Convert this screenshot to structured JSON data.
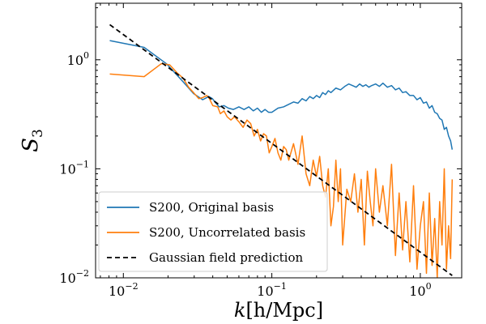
{
  "chart_data": {
    "type": "line",
    "x_scale": "log",
    "y_scale": "log",
    "xlabel_var": "k",
    "xlabel_units": "[h/Mpc]",
    "ylabel_var": "S",
    "ylabel_sub": "3",
    "xlim": [
      0.0065,
      1.9
    ],
    "ylim": [
      0.01,
      3.3
    ],
    "x_ticks": [
      {
        "value": 0.01,
        "base": "10",
        "exp": "−2"
      },
      {
        "value": 0.1,
        "base": "10",
        "exp": "−1"
      },
      {
        "value": 1,
        "base": "10",
        "exp": "0"
      }
    ],
    "y_ticks": [
      {
        "value": 0.01,
        "base": "10",
        "exp": "−2"
      },
      {
        "value": 0.1,
        "base": "10",
        "exp": "−1"
      },
      {
        "value": 1,
        "base": "10",
        "exp": "0"
      }
    ],
    "legend_position": "lower-left",
    "series": [
      {
        "name": "S200, Original basis",
        "color": "#1f77b4",
        "style": "solid",
        "x": [
          0.0081,
          0.0138,
          0.0195,
          0.0252,
          0.0297,
          0.0342,
          0.0376,
          0.0398,
          0.042,
          0.0442,
          0.0476,
          0.051,
          0.055,
          0.06,
          0.065,
          0.07,
          0.075,
          0.08,
          0.085,
          0.09,
          0.095,
          0.1,
          0.11,
          0.12,
          0.13,
          0.14,
          0.15,
          0.16,
          0.17,
          0.18,
          0.19,
          0.2,
          0.21,
          0.22,
          0.23,
          0.24,
          0.25,
          0.27,
          0.29,
          0.31,
          0.33,
          0.35,
          0.37,
          0.39,
          0.41,
          0.43,
          0.45,
          0.47,
          0.5,
          0.53,
          0.56,
          0.6,
          0.64,
          0.68,
          0.72,
          0.76,
          0.8,
          0.85,
          0.9,
          0.95,
          1.0,
          1.05,
          1.1,
          1.15,
          1.2,
          1.25,
          1.3,
          1.35,
          1.4,
          1.45,
          1.5,
          1.55,
          1.6,
          1.64
        ],
        "y": [
          1.5,
          1.3,
          0.92,
          0.63,
          0.49,
          0.43,
          0.46,
          0.44,
          0.4,
          0.37,
          0.38,
          0.36,
          0.35,
          0.37,
          0.35,
          0.37,
          0.34,
          0.36,
          0.33,
          0.35,
          0.33,
          0.33,
          0.36,
          0.37,
          0.39,
          0.41,
          0.4,
          0.44,
          0.42,
          0.46,
          0.44,
          0.47,
          0.45,
          0.5,
          0.48,
          0.52,
          0.5,
          0.55,
          0.53,
          0.57,
          0.6,
          0.58,
          0.56,
          0.6,
          0.57,
          0.59,
          0.56,
          0.58,
          0.6,
          0.57,
          0.61,
          0.56,
          0.58,
          0.53,
          0.55,
          0.5,
          0.51,
          0.47,
          0.47,
          0.43,
          0.45,
          0.4,
          0.41,
          0.36,
          0.38,
          0.33,
          0.32,
          0.29,
          0.28,
          0.23,
          0.24,
          0.2,
          0.18,
          0.15
        ]
      },
      {
        "name": "S200, Uncorrelated basis",
        "color": "#ff7f0e",
        "style": "solid",
        "x": [
          0.0081,
          0.0138,
          0.018,
          0.0205,
          0.0232,
          0.0252,
          0.0275,
          0.0297,
          0.0322,
          0.0342,
          0.0365,
          0.038,
          0.04,
          0.0432,
          0.045,
          0.0476,
          0.05,
          0.053,
          0.056,
          0.06,
          0.064,
          0.068,
          0.072,
          0.076,
          0.08,
          0.084,
          0.088,
          0.092,
          0.096,
          0.1,
          0.105,
          0.11,
          0.115,
          0.12,
          0.125,
          0.13,
          0.14,
          0.15,
          0.16,
          0.17,
          0.18,
          0.19,
          0.2,
          0.21,
          0.22,
          0.23,
          0.24,
          0.25,
          0.26,
          0.27,
          0.28,
          0.29,
          0.3,
          0.32,
          0.34,
          0.36,
          0.38,
          0.4,
          0.42,
          0.44,
          0.46,
          0.48,
          0.5,
          0.53,
          0.56,
          0.6,
          0.64,
          0.68,
          0.72,
          0.76,
          0.8,
          0.85,
          0.9,
          0.95,
          1.0,
          1.05,
          1.1,
          1.15,
          1.2,
          1.25,
          1.3,
          1.35,
          1.4,
          1.45,
          1.5,
          1.55,
          1.6,
          1.64
        ],
        "y": [
          0.74,
          0.7,
          0.92,
          0.9,
          0.75,
          0.68,
          0.56,
          0.5,
          0.44,
          0.45,
          0.47,
          0.44,
          0.38,
          0.37,
          0.32,
          0.34,
          0.3,
          0.28,
          0.3,
          0.27,
          0.24,
          0.28,
          0.26,
          0.2,
          0.23,
          0.18,
          0.21,
          0.2,
          0.14,
          0.16,
          0.19,
          0.14,
          0.12,
          0.16,
          0.15,
          0.12,
          0.17,
          0.11,
          0.2,
          0.09,
          0.07,
          0.12,
          0.085,
          0.13,
          0.07,
          0.055,
          0.1,
          0.03,
          0.045,
          0.12,
          0.05,
          0.1,
          0.02,
          0.065,
          0.05,
          0.09,
          0.04,
          0.08,
          0.02,
          0.095,
          0.05,
          0.03,
          0.1,
          0.04,
          0.07,
          0.03,
          0.11,
          0.016,
          0.06,
          0.018,
          0.05,
          0.014,
          0.07,
          0.012,
          0.03,
          0.05,
          0.011,
          0.06,
          0.013,
          0.035,
          0.01,
          0.05,
          0.02,
          0.1,
          0.012,
          0.03,
          0.015,
          0.08
        ]
      },
      {
        "name": "Gaussian field prediction",
        "color": "#000000",
        "style": "dashed",
        "x": [
          0.0081,
          1.64
        ],
        "y": [
          2.1,
          0.0105
        ]
      }
    ]
  }
}
